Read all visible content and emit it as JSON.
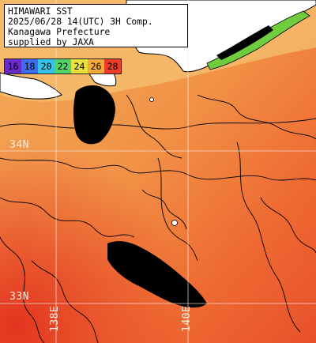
{
  "header": {
    "line1": "HIMAWARI SST",
    "line2": "2025/06/28 14(UTC) 3H Comp.",
    "line3": "Kanagawa Prefecture",
    "line4": "supplied by JAXA"
  },
  "legend": {
    "items": [
      {
        "label": "16",
        "color": "#6a2bc9"
      },
      {
        "label": "18",
        "color": "#3d6cf0"
      },
      {
        "label": "20",
        "color": "#35c3e6"
      },
      {
        "label": "22",
        "color": "#52d46a"
      },
      {
        "label": "24",
        "color": "#e9e23e"
      },
      {
        "label": "26",
        "color": "#f3a83c"
      },
      {
        "label": "28",
        "color": "#ee3c2b"
      }
    ]
  },
  "grid_labels": {
    "lat_34": "34N",
    "lon_138": "138E",
    "lon_140": "140E",
    "lat_lower": "33N"
  },
  "colors": {
    "land": "#ffffff",
    "cloud_mask": "#000000",
    "sea_warm": "#ee7a36",
    "sea_mid": "#f39a48",
    "sea_cool": "#f2b866"
  }
}
